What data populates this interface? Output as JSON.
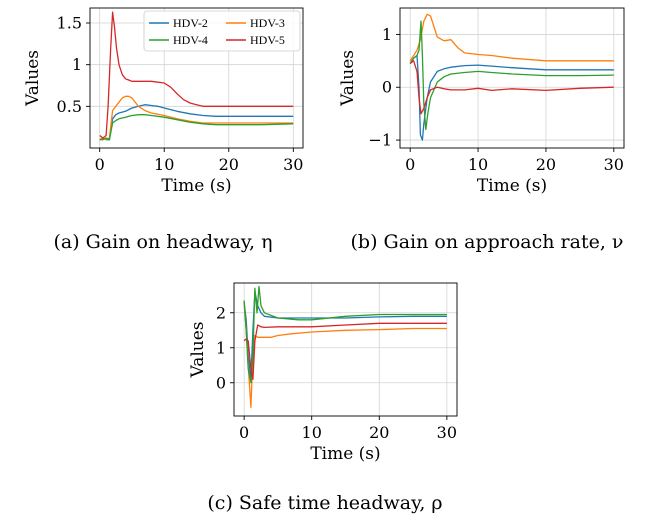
{
  "chart_data": [
    {
      "type": "line",
      "caption": "(a) Gain on headway, η",
      "xlabel": "Time (s)",
      "ylabel": "Values",
      "xlim": [
        -1.5,
        31.5
      ],
      "ylim": [
        0.0,
        1.68
      ],
      "xticks": [
        0,
        10,
        20,
        30
      ],
      "yticks": [
        0.5,
        1,
        1.5
      ],
      "ytick_labels": [
        "0.5",
        "1",
        "1.5"
      ],
      "grid": true,
      "legend": {
        "placement": "top-right",
        "columns": 2
      },
      "series": [
        {
          "name": "HDV-2",
          "color": "#1f77b4",
          "x": [
            0,
            0.5,
            1,
            1.5,
            2,
            2.5,
            3,
            4,
            5,
            6,
            7,
            8,
            9,
            10,
            12,
            14,
            16,
            18,
            20,
            25,
            30
          ],
          "y": [
            0.1,
            0.12,
            0.1,
            0.1,
            0.35,
            0.4,
            0.42,
            0.44,
            0.48,
            0.5,
            0.52,
            0.51,
            0.5,
            0.48,
            0.44,
            0.41,
            0.39,
            0.38,
            0.38,
            0.38,
            0.38
          ]
        },
        {
          "name": "HDV-3",
          "color": "#ff7f0e",
          "x": [
            0,
            0.5,
            1,
            1.5,
            2,
            2.5,
            3,
            3.5,
            4,
            4.5,
            5,
            6,
            7,
            8,
            10,
            12,
            14,
            16,
            18,
            20,
            25,
            30
          ],
          "y": [
            0.1,
            0.12,
            0.1,
            0.12,
            0.45,
            0.5,
            0.55,
            0.6,
            0.62,
            0.62,
            0.6,
            0.5,
            0.45,
            0.42,
            0.39,
            0.35,
            0.32,
            0.3,
            0.3,
            0.3,
            0.3,
            0.3
          ]
        },
        {
          "name": "HDV-4",
          "color": "#2ca02c",
          "x": [
            0,
            0.5,
            1,
            1.5,
            2,
            2.5,
            3,
            4,
            5,
            6,
            7,
            8,
            10,
            12,
            14,
            16,
            18,
            20,
            25,
            30
          ],
          "y": [
            0.1,
            0.1,
            0.12,
            0.1,
            0.3,
            0.33,
            0.35,
            0.37,
            0.39,
            0.4,
            0.4,
            0.39,
            0.37,
            0.34,
            0.31,
            0.29,
            0.28,
            0.28,
            0.28,
            0.29
          ]
        },
        {
          "name": "HDV-5",
          "color": "#d62728",
          "x": [
            0,
            0.5,
            1,
            1.3,
            1.7,
            2,
            2.3,
            2.6,
            3,
            3.5,
            4,
            5,
            6,
            7,
            8,
            10,
            11,
            12,
            13,
            14,
            15,
            16,
            18,
            20,
            25,
            30
          ],
          "y": [
            0.15,
            0.12,
            0.15,
            0.5,
            1.2,
            1.63,
            1.45,
            1.2,
            1.0,
            0.88,
            0.83,
            0.8,
            0.8,
            0.8,
            0.8,
            0.78,
            0.73,
            0.65,
            0.58,
            0.54,
            0.52,
            0.5,
            0.5,
            0.5,
            0.5,
            0.5
          ]
        }
      ]
    },
    {
      "type": "line",
      "caption": "(b) Gain on approach rate, ν",
      "xlabel": "Time (s)",
      "ylabel": "Values",
      "xlim": [
        -1.5,
        31.5
      ],
      "ylim": [
        -1.15,
        1.5
      ],
      "xticks": [
        0,
        10,
        20,
        30
      ],
      "yticks": [
        -1,
        0,
        1
      ],
      "ytick_labels": [
        "−1",
        "0",
        "1"
      ],
      "grid": true,
      "series": [
        {
          "name": "HDV-2",
          "color": "#1f77b4",
          "x": [
            0,
            0.5,
            1,
            1.3,
            1.5,
            1.8,
            2,
            2.5,
            3,
            4,
            5,
            6,
            8,
            10,
            12,
            15,
            20,
            25,
            30
          ],
          "y": [
            0.45,
            0.55,
            0.6,
            0.0,
            -0.9,
            -1.0,
            -0.7,
            -0.2,
            0.1,
            0.3,
            0.35,
            0.38,
            0.41,
            0.42,
            0.4,
            0.37,
            0.33,
            0.33,
            0.33
          ]
        },
        {
          "name": "HDV-3",
          "color": "#ff7f0e",
          "x": [
            0,
            0.5,
            1,
            1.5,
            2,
            2.5,
            3,
            3.5,
            4,
            5,
            6,
            7,
            8,
            10,
            12,
            15,
            20,
            25,
            30
          ],
          "y": [
            0.5,
            0.6,
            0.7,
            0.9,
            1.25,
            1.38,
            1.35,
            1.15,
            0.95,
            0.88,
            0.9,
            0.75,
            0.65,
            0.62,
            0.6,
            0.55,
            0.5,
            0.5,
            0.5
          ]
        },
        {
          "name": "HDV-4",
          "color": "#2ca02c",
          "x": [
            0,
            0.5,
            1,
            1.3,
            1.6,
            1.8,
            2,
            2.3,
            2.6,
            3,
            4,
            5,
            6,
            8,
            10,
            12,
            15,
            20,
            25,
            30
          ],
          "y": [
            0.45,
            0.55,
            0.6,
            0.7,
            1.25,
            0.6,
            -0.3,
            -0.8,
            -0.5,
            -0.2,
            0.1,
            0.2,
            0.25,
            0.28,
            0.3,
            0.28,
            0.25,
            0.22,
            0.22,
            0.23
          ]
        },
        {
          "name": "HDV-5",
          "color": "#d62728",
          "x": [
            0,
            0.5,
            1,
            1.3,
            1.6,
            2,
            2.5,
            3,
            4,
            5,
            6,
            8,
            10,
            12,
            15,
            20,
            25,
            30
          ],
          "y": [
            0.45,
            0.5,
            0.3,
            -0.2,
            -0.5,
            -0.4,
            -0.2,
            -0.05,
            0.0,
            -0.03,
            -0.05,
            -0.05,
            -0.02,
            -0.06,
            -0.03,
            -0.06,
            -0.02,
            0.0
          ]
        }
      ]
    },
    {
      "type": "line",
      "caption": "(c) Safe time headway, ρ",
      "xlabel": "Time (s)",
      "ylabel": "Values",
      "xlim": [
        -1.5,
        31.5
      ],
      "ylim": [
        -0.95,
        2.85
      ],
      "xticks": [
        0,
        10,
        20,
        30
      ],
      "yticks": [
        0,
        1,
        2
      ],
      "ytick_labels": [
        "0",
        "1",
        "2"
      ],
      "grid": true,
      "series": [
        {
          "name": "HDV-2",
          "color": "#1f77b4",
          "x": [
            0,
            0.3,
            0.6,
            1,
            1.3,
            1.6,
            2,
            2.5,
            3,
            5,
            10,
            15,
            20,
            25,
            30
          ],
          "y": [
            2.3,
            1.8,
            0.8,
            0.1,
            1.5,
            2.6,
            2.2,
            2.0,
            1.9,
            1.85,
            1.85,
            1.85,
            1.88,
            1.9,
            1.9
          ]
        },
        {
          "name": "HDV-3",
          "color": "#ff7f0e",
          "x": [
            0,
            0.3,
            0.6,
            1,
            1.2,
            1.5,
            2,
            3,
            4,
            5,
            7,
            10,
            15,
            20,
            25,
            30
          ],
          "y": [
            2.3,
            1.5,
            0.5,
            -0.7,
            0.3,
            1.35,
            1.3,
            1.3,
            1.3,
            1.35,
            1.4,
            1.45,
            1.5,
            1.52,
            1.55,
            1.55
          ]
        },
        {
          "name": "HDV-4",
          "color": "#2ca02c",
          "x": [
            0,
            0.3,
            0.6,
            1,
            1.3,
            1.6,
            1.9,
            2.2,
            2.5,
            3,
            5,
            8,
            10,
            15,
            20,
            25,
            30
          ],
          "y": [
            2.35,
            1.5,
            0.4,
            0.0,
            0.8,
            2.7,
            2.0,
            2.75,
            2.2,
            2.0,
            1.85,
            1.8,
            1.8,
            1.9,
            1.95,
            1.95,
            1.95
          ]
        },
        {
          "name": "HDV-5",
          "color": "#d62728",
          "x": [
            0,
            0.3,
            0.6,
            1,
            1.3,
            1.6,
            2,
            2.5,
            3,
            5,
            10,
            15,
            20,
            25,
            30
          ],
          "y": [
            1.2,
            1.25,
            1.2,
            0.4,
            0.1,
            1.2,
            1.65,
            1.6,
            1.58,
            1.6,
            1.6,
            1.65,
            1.7,
            1.7,
            1.7
          ]
        }
      ]
    }
  ]
}
